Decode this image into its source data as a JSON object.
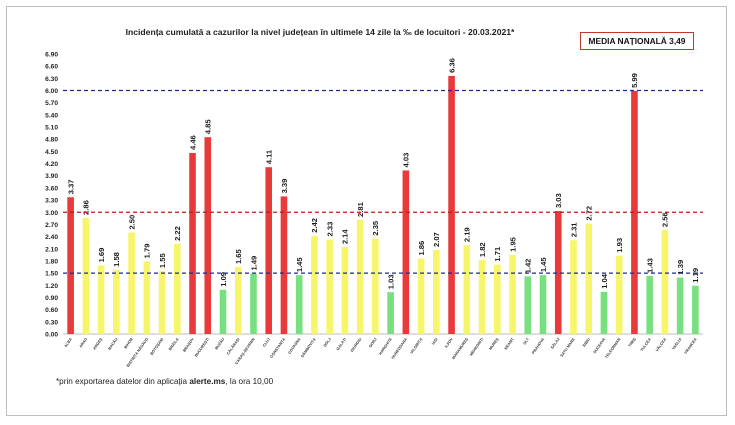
{
  "title": "Incidența cumulată a cazurilor la nivel județean în ultimele 14 zile la ‰ de locuitori - 20.03.2021*",
  "media_box": "MEDIA NAȚIONALĂ 3,49",
  "footnote": {
    "prefix": "*prin exportarea datelor din aplicația ",
    "app": "alerte.ms",
    "suffix": ", la ora 10,00"
  },
  "colors": {
    "red": "#e8393b",
    "yellow": "#f7f56a",
    "green": "#78e07e",
    "threshold_blue": "#1f2b8a",
    "threshold_red": "#b71c1c"
  },
  "chart_data": {
    "type": "bar",
    "ylim": [
      0,
      6.9
    ],
    "yticks": [
      "0.00",
      "0.30",
      "0.60",
      "0.90",
      "1.20",
      "1.50",
      "1.80",
      "2.10",
      "2.40",
      "2.70",
      "3.00",
      "3.30",
      "3.60",
      "3.90",
      "4.20",
      "4.50",
      "4.80",
      "5.10",
      "5.40",
      "5.70",
      "6.00",
      "6.30",
      "6.60",
      "6.90"
    ],
    "grid": false,
    "reference_lines": [
      {
        "value": 6.0,
        "style": "dashed",
        "color": "blue"
      },
      {
        "value": 3.0,
        "style": "dashed",
        "color": "red"
      },
      {
        "value": 1.5,
        "style": "dashed",
        "color": "blue"
      }
    ],
    "categories": [
      "ALBA",
      "ARAD",
      "ARGEȘ",
      "BACĂU",
      "BIHOR",
      "BISTRIȚA NĂSĂUD",
      "BOTOȘANI",
      "BRĂILA",
      "BRAȘOV",
      "BUCUREȘTI",
      "BUZĂU",
      "CĂLĂRAȘI",
      "CARAȘ-SEVERIN",
      "CLUJ",
      "CONSTANȚA",
      "COVASNA",
      "DÂMBOVIȚA",
      "DOLJ",
      "GALAȚI",
      "GIURGIU",
      "GORJ",
      "HARGHITA",
      "HUNEDOARA",
      "IALOMIȚA",
      "IAȘI",
      "ILFOV",
      "MARAMUREȘ",
      "MEHEDINȚI",
      "MUREȘ",
      "NEAMȚ",
      "OLT",
      "PRAHOVA",
      "SĂLAJ",
      "SATU MARE",
      "SIBIU",
      "SUCEAVA",
      "TELEORMAN",
      "TIMIȘ",
      "TULCEA",
      "VÂLCEA",
      "VASLUI",
      "VRANCEA"
    ],
    "values": [
      3.37,
      2.86,
      1.69,
      1.58,
      2.5,
      1.79,
      1.55,
      2.22,
      4.46,
      4.85,
      1.09,
      1.65,
      1.49,
      4.11,
      3.39,
      1.45,
      2.42,
      2.33,
      2.14,
      2.81,
      2.35,
      1.03,
      4.03,
      1.86,
      2.07,
      6.36,
      2.19,
      1.82,
      1.71,
      1.95,
      1.42,
      1.45,
      3.03,
      2.31,
      2.72,
      1.04,
      1.93,
      5.99,
      1.43,
      2.56,
      1.39,
      1.19
    ],
    "value_labels": [
      "3.37",
      "2.86",
      "1.69",
      "1.58",
      "2.50",
      "1.79",
      "1.55",
      "2.22",
      "4.46",
      "4.85",
      "1.09",
      "1.65",
      "1.49",
      "4.11",
      "3.39",
      "1.45",
      "2.42",
      "2.33",
      "2.14",
      "2.81",
      "2.35",
      "1.03",
      "4.03",
      "1.86",
      "2.07",
      "6.36",
      "2.19",
      "1.82",
      "1.71",
      "1.95",
      "1.42",
      "1.45",
      "3.03",
      "2.31",
      "2.72",
      "1.04",
      "1.93",
      "5.99",
      "1.43",
      "2.56",
      "1.39",
      "1.19"
    ],
    "color_rule": "red > 3.0, yellow 1.5–3.0, green < 1.5"
  }
}
